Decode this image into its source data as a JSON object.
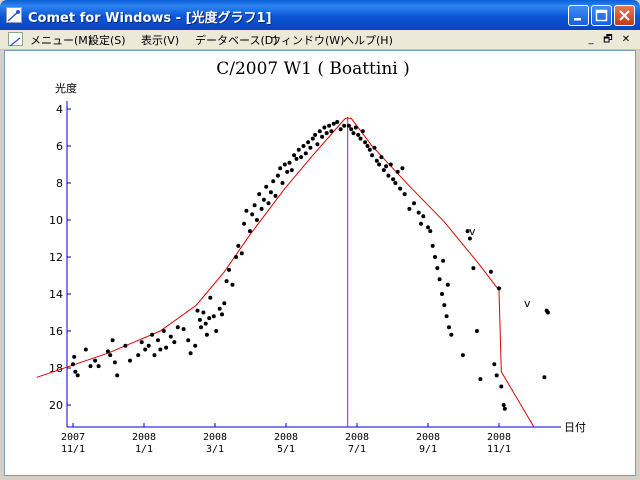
{
  "window": {
    "title": "Comet for Windows - [光度グラフ1]",
    "buttons": {
      "minimize": "_",
      "maximize": "□",
      "close": "✕"
    }
  },
  "menubar": {
    "items": [
      "メニュー(M)",
      "設定(S)",
      "表示(V)",
      "データベース(D)",
      "ウィンドウ(W)",
      "ヘルプ(H)"
    ],
    "mdi_buttons": [
      "_",
      "🗗",
      "✕"
    ]
  },
  "chart_data": {
    "type": "scatter",
    "title": "C/2007 W1 ( Boattini )",
    "ylabel": "光度",
    "xlabel": "日付",
    "y_inverted": true,
    "ylim": [
      21.2,
      3.3
    ],
    "y_ticks": [
      4,
      6,
      8,
      10,
      12,
      14,
      16,
      18,
      20
    ],
    "x_tick_labels": [
      [
        "2007",
        "11/1"
      ],
      [
        "2008",
        "1/1"
      ],
      [
        "2008",
        "3/1"
      ],
      [
        "2008",
        "5/1"
      ],
      [
        "2008",
        "7/1"
      ],
      [
        "2008",
        "9/1"
      ],
      [
        "2008",
        "11/1"
      ]
    ],
    "perihelion_line_label": "",
    "annotations": [
      "v",
      "v"
    ],
    "colors": {
      "points": "#000000",
      "model": "#e00000",
      "perihelion": "#cc00cc",
      "axis": "#0000cc"
    },
    "model_curve": [
      [
        "2007-10-01",
        18.5
      ],
      [
        "2007-12-01",
        17.2
      ],
      [
        "2008-01-15",
        16.0
      ],
      [
        "2008-02-15",
        14.6
      ],
      [
        "2008-03-10",
        12.8
      ],
      [
        "2008-04-01",
        10.8
      ],
      [
        "2008-05-01",
        8.3
      ],
      [
        "2008-05-25",
        6.5
      ],
      [
        "2008-06-15",
        5.0
      ],
      [
        "2008-06-22",
        4.5
      ],
      [
        "2008-06-27",
        4.5
      ],
      [
        "2008-07-15",
        6.0
      ],
      [
        "2008-08-15",
        8.1
      ],
      [
        "2008-09-15",
        10.1
      ],
      [
        "2008-10-15",
        12.4
      ],
      [
        "2008-11-01",
        13.8
      ],
      [
        "2008-11-03",
        18.2
      ],
      [
        "2008-12-01",
        21.3
      ]
    ],
    "perihelion_date": "2008-06-24",
    "series": [
      {
        "values": [
          [
            "2007-11-01",
            17.8
          ],
          [
            "2007-11-02",
            17.4
          ],
          [
            "2007-11-03",
            18.2
          ],
          [
            "2007-11-05",
            18.4
          ],
          [
            "2007-11-12",
            17.0
          ],
          [
            "2007-11-16",
            17.9
          ],
          [
            "2007-11-20",
            17.6
          ],
          [
            "2007-11-23",
            17.9
          ],
          [
            "2007-12-01",
            17.1
          ],
          [
            "2007-12-03",
            17.3
          ],
          [
            "2007-12-05",
            16.5
          ],
          [
            "2007-12-07",
            17.7
          ],
          [
            "2007-12-09",
            18.4
          ],
          [
            "2007-12-16",
            16.8
          ],
          [
            "2007-12-20",
            17.6
          ],
          [
            "2007-12-27",
            17.3
          ],
          [
            "2007-12-30",
            16.6
          ],
          [
            "2008-01-02",
            17.0
          ],
          [
            "2008-01-05",
            16.8
          ],
          [
            "2008-01-08",
            16.2
          ],
          [
            "2008-01-10",
            17.3
          ],
          [
            "2008-01-13",
            16.5
          ],
          [
            "2008-01-15",
            17.0
          ],
          [
            "2008-01-18",
            16.0
          ],
          [
            "2008-01-20",
            16.9
          ],
          [
            "2008-01-24",
            16.3
          ],
          [
            "2008-01-27",
            16.6
          ],
          [
            "2008-01-30",
            15.8
          ],
          [
            "2008-02-04",
            15.9
          ],
          [
            "2008-02-08",
            16.5
          ],
          [
            "2008-02-10",
            17.2
          ],
          [
            "2008-02-14",
            16.8
          ],
          [
            "2008-02-16",
            14.9
          ],
          [
            "2008-02-18",
            15.4
          ],
          [
            "2008-02-19",
            15.8
          ],
          [
            "2008-02-21",
            15.0
          ],
          [
            "2008-02-23",
            15.6
          ],
          [
            "2008-02-24",
            16.2
          ],
          [
            "2008-02-26",
            15.3
          ],
          [
            "2008-02-27",
            14.2
          ],
          [
            "2008-03-01",
            15.2
          ],
          [
            "2008-03-03",
            16.0
          ],
          [
            "2008-03-06",
            14.8
          ],
          [
            "2008-03-08",
            15.1
          ],
          [
            "2008-03-10",
            14.5
          ],
          [
            "2008-03-12",
            13.3
          ],
          [
            "2008-03-14",
            12.7
          ],
          [
            "2008-03-17",
            13.5
          ],
          [
            "2008-03-20",
            12.0
          ],
          [
            "2008-03-22",
            11.4
          ],
          [
            "2008-03-25",
            11.8
          ],
          [
            "2008-03-27",
            10.2
          ],
          [
            "2008-03-29",
            9.5
          ],
          [
            "2008-04-01",
            10.6
          ],
          [
            "2008-04-03",
            9.7
          ],
          [
            "2008-04-05",
            9.2
          ],
          [
            "2008-04-07",
            10.0
          ],
          [
            "2008-04-09",
            8.6
          ],
          [
            "2008-04-11",
            9.4
          ],
          [
            "2008-04-13",
            8.9
          ],
          [
            "2008-04-15",
            8.2
          ],
          [
            "2008-04-17",
            9.1
          ],
          [
            "2008-04-19",
            8.5
          ],
          [
            "2008-04-21",
            7.9
          ],
          [
            "2008-04-23",
            8.7
          ],
          [
            "2008-04-25",
            7.6
          ],
          [
            "2008-04-27",
            7.2
          ],
          [
            "2008-04-29",
            8.0
          ],
          [
            "2008-05-01",
            7.0
          ],
          [
            "2008-05-03",
            7.4
          ],
          [
            "2008-05-05",
            6.9
          ],
          [
            "2008-05-07",
            7.3
          ],
          [
            "2008-05-09",
            6.5
          ],
          [
            "2008-05-11",
            6.7
          ],
          [
            "2008-05-13",
            6.2
          ],
          [
            "2008-05-15",
            6.6
          ],
          [
            "2008-05-17",
            6.0
          ],
          [
            "2008-05-19",
            6.4
          ],
          [
            "2008-05-21",
            5.8
          ],
          [
            "2008-05-23",
            6.1
          ],
          [
            "2008-05-25",
            5.6
          ],
          [
            "2008-05-27",
            5.4
          ],
          [
            "2008-05-29",
            5.9
          ],
          [
            "2008-05-31",
            5.2
          ],
          [
            "2008-06-02",
            5.5
          ],
          [
            "2008-06-04",
            5.0
          ],
          [
            "2008-06-06",
            5.3
          ],
          [
            "2008-06-08",
            4.9
          ],
          [
            "2008-06-10",
            5.2
          ],
          [
            "2008-06-12",
            4.8
          ],
          [
            "2008-06-15",
            4.7
          ],
          [
            "2008-06-18",
            5.1
          ],
          [
            "2008-06-21",
            4.9
          ]
        ]
      },
      {
        "values": [
          [
            "2008-06-25",
            4.9
          ],
          [
            "2008-06-27",
            5.1
          ],
          [
            "2008-06-29",
            5.3
          ],
          [
            "2008-07-01",
            5.0
          ],
          [
            "2008-07-03",
            5.4
          ],
          [
            "2008-07-05",
            5.6
          ],
          [
            "2008-07-07",
            5.2
          ],
          [
            "2008-07-09",
            5.8
          ],
          [
            "2008-07-11",
            6.0
          ],
          [
            "2008-07-13",
            6.2
          ],
          [
            "2008-07-15",
            6.5
          ],
          [
            "2008-07-17",
            6.1
          ],
          [
            "2008-07-19",
            6.8
          ],
          [
            "2008-07-21",
            7.0
          ],
          [
            "2008-07-23",
            6.6
          ],
          [
            "2008-07-25",
            7.3
          ],
          [
            "2008-07-27",
            7.1
          ],
          [
            "2008-07-29",
            7.6
          ],
          [
            "2008-07-31",
            7.0
          ],
          [
            "2008-08-02",
            7.8
          ],
          [
            "2008-08-04",
            8.0
          ],
          [
            "2008-08-06",
            7.4
          ],
          [
            "2008-08-08",
            8.3
          ],
          [
            "2008-08-10",
            7.2
          ],
          [
            "2008-08-12",
            8.6
          ],
          [
            "2008-08-16",
            9.4
          ],
          [
            "2008-08-20",
            9.1
          ],
          [
            "2008-08-24",
            9.6
          ],
          [
            "2008-08-26",
            10.2
          ],
          [
            "2008-08-28",
            9.8
          ],
          [
            "2008-09-01",
            10.4
          ],
          [
            "2008-09-03",
            10.6
          ],
          [
            "2008-09-05",
            11.4
          ],
          [
            "2008-09-07",
            12.0
          ],
          [
            "2008-09-09",
            12.6
          ],
          [
            "2008-09-11",
            13.2
          ],
          [
            "2008-09-13",
            14.0
          ],
          [
            "2008-09-15",
            14.6
          ],
          [
            "2008-09-17",
            15.2
          ],
          [
            "2008-09-19",
            15.8
          ],
          [
            "2008-09-21",
            16.2
          ],
          [
            "2008-09-14",
            12.2
          ],
          [
            "2008-09-18",
            13.5
          ],
          [
            "2008-10-01",
            17.3
          ],
          [
            "2008-10-05",
            10.6
          ],
          [
            "2008-10-07",
            11.0
          ],
          [
            "2008-10-10",
            12.6
          ],
          [
            "2008-10-13",
            16.0
          ],
          [
            "2008-10-16",
            18.6
          ],
          [
            "2008-10-25",
            12.8
          ],
          [
            "2008-10-28",
            17.8
          ],
          [
            "2008-10-30",
            18.4
          ],
          [
            "2008-11-01",
            13.7
          ],
          [
            "2008-11-03",
            19.0
          ],
          [
            "2008-11-05",
            20.0
          ],
          [
            "2008-11-06",
            20.2
          ],
          [
            "2008-12-10",
            18.5
          ],
          [
            "2008-12-12",
            14.9
          ],
          [
            "2008-12-13",
            15.0
          ]
        ]
      }
    ]
  }
}
